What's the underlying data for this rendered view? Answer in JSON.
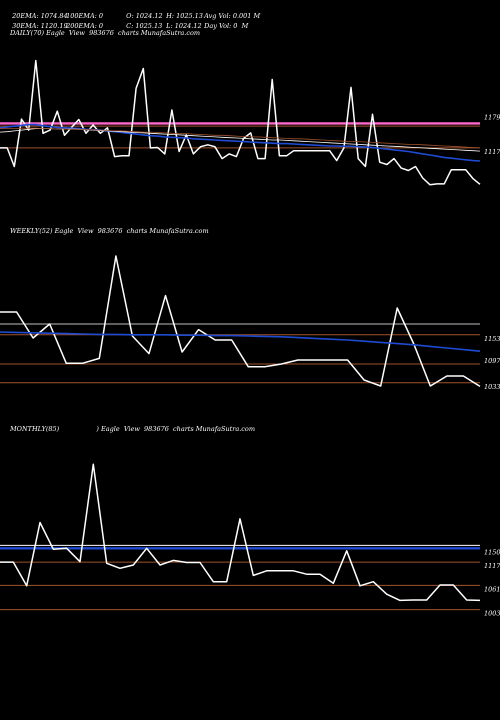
{
  "header": {
    "ema20": "20EMA: 1074.84",
    "ema100": "100EMA: 0",
    "open": "O: 1024.12",
    "high": "H: 1025.13",
    "avg_vol": "Avg Vol: 0.001 M",
    "ema30": "30EMA: 1120.19",
    "ema200": "200EMA: 0",
    "close": "C: 1025.13",
    "low": "L: 1024.12",
    "day_vol": "Day Vol: 0  M"
  },
  "colors": {
    "background": "#000000",
    "price": "#ffffff",
    "ema_blue": "#1e4bd2",
    "level_line": "#a0522d",
    "pink_line": "#ff66cc",
    "grey_line": "#c0c0c0"
  },
  "chart_data": [
    {
      "type": "line",
      "title": "DAILY(70) Eagle  View  983676  charts MunafaSutra.com",
      "ylim": [
        960,
        1390
      ],
      "y_ticks": [
        {
          "value": 1179,
          "label": "1179"
        },
        {
          "value": 1117,
          "label": "1117"
        }
      ],
      "levels": [
        {
          "value": 1179,
          "color": "#ff66cc",
          "name": ""
        },
        {
          "value": 1172,
          "color": "#a0522d",
          "name": ""
        },
        {
          "value": 1117,
          "color": "#a0522d",
          "name": ""
        }
      ],
      "series": [
        {
          "role": "price",
          "color": "#ffffff",
          "values": [
            1117,
            1117,
            1070,
            1190,
            1162,
            1338,
            1154,
            1162,
            1210,
            1149,
            1169,
            1189,
            1154,
            1175,
            1154,
            1168,
            1095,
            1097,
            1097,
            1268,
            1318,
            1117,
            1118,
            1102,
            1213,
            1108,
            1150,
            1102,
            1120,
            1125,
            1120,
            1090,
            1102,
            1095,
            1141,
            1155,
            1090,
            1090,
            1290,
            1097,
            1097,
            1110,
            1110,
            1110,
            1110,
            1110,
            1110,
            1085,
            1117,
            1270,
            1090,
            1070,
            1202,
            1081,
            1075,
            1090,
            1066,
            1060,
            1070,
            1041,
            1024,
            1026,
            1026,
            1062,
            1062,
            1062,
            1040,
            1025
          ]
        },
        {
          "role": "ema",
          "color": "#1e4bd2",
          "values": [
            1168,
            1170,
            1172,
            1174,
            1176,
            1176,
            1173,
            1171,
            1169,
            1168,
            1167,
            1166,
            1164,
            1163,
            1162,
            1160,
            1158,
            1156,
            1154,
            1152,
            1150,
            1148,
            1147,
            1145,
            1144,
            1143,
            1142,
            1140,
            1139,
            1138,
            1137,
            1136,
            1135,
            1134,
            1133,
            1132,
            1131,
            1130,
            1129,
            1128,
            1128,
            1127,
            1126,
            1125,
            1124,
            1123,
            1122,
            1122,
            1121,
            1121,
            1120,
            1119,
            1118,
            1116,
            1114,
            1112,
            1110,
            1108,
            1105,
            1102,
            1099,
            1096,
            1093,
            1091,
            1089,
            1087,
            1085,
            1084
          ]
        },
        {
          "role": "ema",
          "color": "#ffffff",
          "values": [
            1157,
            1158,
            1160,
            1162,
            1164,
            1166,
            1166,
            1166,
            1165,
            1165,
            1165,
            1164,
            1163,
            1162,
            1161,
            1160,
            1159,
            1158,
            1157,
            1156,
            1155,
            1154,
            1153,
            1152,
            1151,
            1150,
            1149,
            1148,
            1147,
            1146,
            1145,
            1144,
            1143,
            1142,
            1141,
            1140,
            1139,
            1138,
            1137,
            1137,
            1136,
            1135,
            1134,
            1133,
            1132,
            1131,
            1130,
            1129,
            1128,
            1127,
            1126,
            1125,
            1124,
            1123,
            1122,
            1121,
            1120,
            1119,
            1118,
            1117,
            1116,
            1115,
            1114,
            1113,
            1112,
            1111,
            1110,
            1109
          ]
        },
        {
          "role": "ema",
          "color": "#a0522d",
          "values": [
            1166,
            1166,
            1166,
            1167,
            1167,
            1167,
            1166,
            1166,
            1165,
            1165,
            1164,
            1164,
            1163,
            1163,
            1162,
            1161,
            1160,
            1160,
            1159,
            1158,
            1157,
            1157,
            1156,
            1155,
            1154,
            1153,
            1153,
            1152,
            1151,
            1150,
            1149,
            1149,
            1148,
            1147,
            1146,
            1145,
            1145,
            1144,
            1143,
            1142,
            1141,
            1140,
            1140,
            1139,
            1138,
            1137,
            1136,
            1135,
            1134,
            1133,
            1133,
            1132,
            1131,
            1130,
            1129,
            1128,
            1127,
            1126,
            1126,
            1125,
            1124,
            1123,
            1122,
            1121,
            1120,
            1119,
            1118,
            1117
          ]
        }
      ]
    },
    {
      "type": "line",
      "title": "WEEKLY(52) Eagle  View  983676  charts MunafaSutra.com",
      "ylim": [
        940,
        1390
      ],
      "y_ticks": [
        {
          "value": 1153,
          "label": "1153"
        },
        {
          "value": 1097,
          "label": "1097"
        },
        {
          "value": 1033,
          "label": "1033"
        }
      ],
      "levels": [
        {
          "value": 1180,
          "color": "#c0c0c0",
          "name": ""
        },
        {
          "value": 1153,
          "color": "#a0522d",
          "name": ""
        },
        {
          "value": 1080,
          "color": "#a0522d",
          "name": ""
        },
        {
          "value": 1033,
          "color": "#a0522d",
          "name": ""
        }
      ],
      "series": [
        {
          "role": "price",
          "color": "#ffffff",
          "values": [
            1210,
            1210,
            1145,
            1180,
            1082,
            1082,
            1094,
            1350,
            1150,
            1106,
            1251,
            1110,
            1166,
            1140,
            1140,
            1073,
            1073,
            1080,
            1090,
            1090,
            1090,
            1090,
            1040,
            1025,
            1220,
            1130,
            1025,
            1050,
            1050,
            1024
          ]
        },
        {
          "role": "ema",
          "color": "#1e4bd2",
          "values": [
            1160,
            1159,
            1158,
            1157,
            1156,
            1155,
            1154,
            1154,
            1153,
            1153,
            1153,
            1152,
            1152,
            1151,
            1151,
            1150,
            1149,
            1148,
            1146,
            1144,
            1142,
            1140,
            1137,
            1134,
            1131,
            1128,
            1124,
            1120,
            1116,
            1112
          ]
        }
      ]
    },
    {
      "type": "line",
      "title": "MONTHLY(85)                  ) Eagle  View  983676  charts MunafaSutra.com",
      "ylim": [
        930,
        1410
      ],
      "y_ticks": [
        {
          "value": 1150,
          "label": "1150"
        },
        {
          "value": 1117,
          "label": "1117"
        },
        {
          "value": 1061,
          "label": "1061"
        },
        {
          "value": 1003,
          "label": "1003"
        }
      ],
      "levels": [
        {
          "value": 1157,
          "color": "#ffffff",
          "name": ""
        },
        {
          "value": 1150,
          "color": "#1e4bd2",
          "name": ""
        },
        {
          "value": 1117,
          "color": "#a0522d",
          "name": ""
        },
        {
          "value": 1061,
          "color": "#a0522d",
          "name": ""
        },
        {
          "value": 1003,
          "color": "#a0522d",
          "name": ""
        }
      ],
      "series": [
        {
          "role": "price",
          "color": "#ffffff",
          "values": [
            1117,
            1117,
            1060,
            1212,
            1148,
            1150,
            1118,
            1352,
            1114,
            1102,
            1110,
            1150,
            1110,
            1121,
            1116,
            1116,
            1070,
            1070,
            1221,
            1085,
            1096,
            1096,
            1096,
            1088,
            1088,
            1066,
            1144,
            1060,
            1070,
            1040,
            1025,
            1026,
            1026,
            1062,
            1062,
            1026,
            1025
          ]
        }
      ]
    }
  ]
}
